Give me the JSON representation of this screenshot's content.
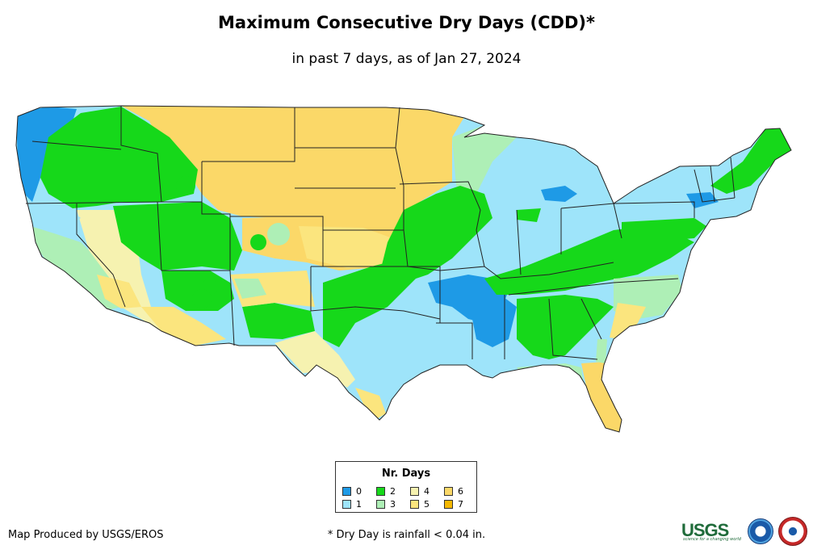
{
  "title": "Maximum Consecutive Dry Days (CDD)*",
  "subtitle": "in past 7 days, as of Jan 27, 2024",
  "legend": {
    "title": "Nr. Days",
    "items": [
      {
        "label": "0",
        "color": "#1e9ae6"
      },
      {
        "label": "1",
        "color": "#9ee4fa"
      },
      {
        "label": "2",
        "color": "#16d81a"
      },
      {
        "label": "3",
        "color": "#aeefb6"
      },
      {
        "label": "4",
        "color": "#f6f2b0"
      },
      {
        "label": "5",
        "color": "#fbe57e"
      },
      {
        "label": "6",
        "color": "#fbd868"
      },
      {
        "label": "7",
        "color": "#f5b800"
      }
    ]
  },
  "credit": "Map Produced by USGS/EROS",
  "footnote": "* Dry Day is rainfall < 0.04 in.",
  "logos": [
    {
      "name": "usgs-logo",
      "text": "USGS",
      "tagline": "science for a changing world"
    },
    {
      "name": "noaa-logo"
    },
    {
      "name": "nws-logo"
    }
  ],
  "colors": {
    "state_border": "#222222",
    "background": "#ffffff"
  }
}
